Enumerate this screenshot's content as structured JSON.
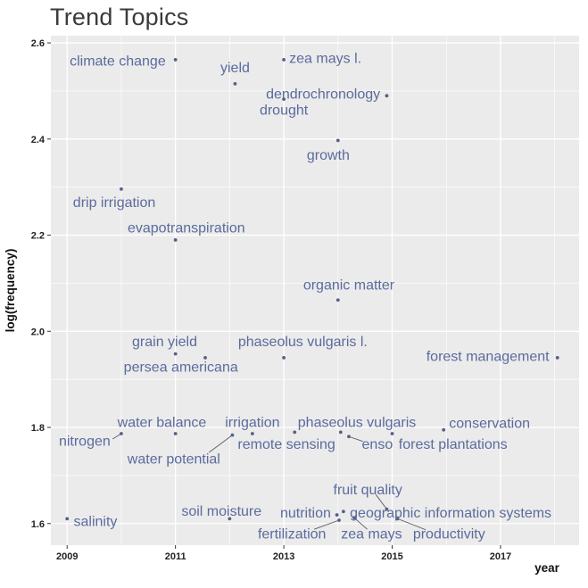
{
  "chart_data": {
    "type": "scatter",
    "title": "Trend Topics",
    "xlabel": "year",
    "ylabel": "log(frequency)",
    "x_domain": [
      2008.7,
      2018.45
    ],
    "y_domain": [
      1.555,
      2.615
    ],
    "x_ticks": {
      "values": [
        2009,
        2011,
        2013,
        2015,
        2017
      ],
      "labels": [
        "2009",
        "2011",
        "2013",
        "2015",
        "2017"
      ]
    },
    "x_minor_ticks": [
      2010,
      2012,
      2014,
      2016,
      2018
    ],
    "y_ticks": {
      "values": [
        2.6,
        2.4,
        2.2,
        2.0,
        1.8,
        1.6
      ],
      "labels": [
        "2.6",
        "2.4",
        "2.2",
        "2.0",
        "1.8",
        "1.6"
      ]
    },
    "y_minor_ticks": [
      2.5,
      2.3,
      2.1,
      1.9,
      1.7
    ],
    "panel_bg": "#ebebeb",
    "grid_color": "#ffffff",
    "point_color": "#566084",
    "label_color": "#5b6b9e",
    "leader_color": "#5a5a5a",
    "grid": true,
    "legend": "none",
    "points": [
      {
        "label": "climate change",
        "x": 2011.0,
        "y": 2.565,
        "lx": 2010.82,
        "ly": 2.562,
        "anchor": "end"
      },
      {
        "label": "yield",
        "x": 2012.1,
        "y": 2.515,
        "lx": 2012.1,
        "ly": 2.548,
        "anchor": "middle"
      },
      {
        "label": "zea mays l.",
        "x": 2013.0,
        "y": 2.565,
        "lx": 2013.1,
        "ly": 2.568,
        "anchor": "start"
      },
      {
        "label": "dendrochronology",
        "x": 2014.9,
        "y": 2.49,
        "lx": 2014.78,
        "ly": 2.493,
        "anchor": "end"
      },
      {
        "label": "drought",
        "x": 2013.0,
        "y": 2.483,
        "lx": 2013.0,
        "ly": 2.46,
        "anchor": "middle"
      },
      {
        "label": "growth",
        "x": 2014.0,
        "y": 2.397,
        "lx": 2013.82,
        "ly": 2.366,
        "anchor": "middle"
      },
      {
        "label": "drip irrigation",
        "x": 2010.0,
        "y": 2.296,
        "lx": 2009.87,
        "ly": 2.268,
        "anchor": "middle"
      },
      {
        "label": "evapotranspiration",
        "x": 2011.0,
        "y": 2.19,
        "lx": 2011.2,
        "ly": 2.215,
        "anchor": "middle"
      },
      {
        "label": "organic matter",
        "x": 2014.0,
        "y": 2.065,
        "lx": 2014.2,
        "ly": 2.096,
        "anchor": "middle"
      },
      {
        "label": "grain yield",
        "x": 2011.0,
        "y": 1.953,
        "lx": 2010.8,
        "ly": 1.978,
        "anchor": "middle"
      },
      {
        "label": "persea americana",
        "x": 2011.55,
        "y": 1.945,
        "lx": 2011.1,
        "ly": 1.925,
        "anchor": "middle"
      },
      {
        "label": "phaseolus vulgaris l.",
        "x": 2013.0,
        "y": 1.945,
        "lx": 2013.35,
        "ly": 1.978,
        "anchor": "middle"
      },
      {
        "label": "forest management",
        "x": 2018.05,
        "y": 1.945,
        "lx": 2017.9,
        "ly": 1.948,
        "anchor": "end"
      },
      {
        "label": "nitrogen",
        "x": 2010.0,
        "y": 1.787,
        "lx": 2009.8,
        "ly": 1.771,
        "anchor": "end",
        "leader": [
          2009.84,
          1.776
        ]
      },
      {
        "label": "water balance",
        "x": 2011.0,
        "y": 1.787,
        "lx": 2010.75,
        "ly": 1.81,
        "anchor": "middle"
      },
      {
        "label": "water potential",
        "x": 2012.05,
        "y": 1.784,
        "lx": 2010.97,
        "ly": 1.734,
        "anchor": "middle",
        "leader": [
          2011.62,
          1.748
        ]
      },
      {
        "label": "irrigation",
        "x": 2012.42,
        "y": 1.787,
        "lx": 2012.42,
        "ly": 1.81,
        "anchor": "middle"
      },
      {
        "label": "remote sensing",
        "x": 2013.2,
        "y": 1.79,
        "lx": 2013.05,
        "ly": 1.765,
        "anchor": "middle"
      },
      {
        "label": "phaseolus vulgaris",
        "x": 2014.05,
        "y": 1.79,
        "lx": 2014.35,
        "ly": 1.81,
        "anchor": "middle"
      },
      {
        "label": "enso",
        "x": 2014.2,
        "y": 1.781,
        "lx": 2014.44,
        "ly": 1.765,
        "anchor": "start",
        "leader": [
          2014.46,
          1.771
        ]
      },
      {
        "label": "forest plantations",
        "x": 2015.0,
        "y": 1.787,
        "lx": 2015.12,
        "ly": 1.765,
        "anchor": "start"
      },
      {
        "label": "conservation",
        "x": 2015.95,
        "y": 1.795,
        "lx": 2016.05,
        "ly": 1.808,
        "anchor": "start"
      },
      {
        "label": "fruit quality",
        "x": 2014.9,
        "y": 1.63,
        "lx": 2014.55,
        "ly": 1.67,
        "anchor": "middle",
        "leader": [
          2014.7,
          1.66
        ]
      },
      {
        "label": "salinity",
        "x": 2009.0,
        "y": 1.61,
        "lx": 2009.12,
        "ly": 1.604,
        "anchor": "start"
      },
      {
        "label": "soil moisture",
        "x": 2012.0,
        "y": 1.61,
        "lx": 2011.85,
        "ly": 1.626,
        "anchor": "middle"
      },
      {
        "label": "nutrition",
        "x": 2013.98,
        "y": 1.618,
        "lx": 2013.87,
        "ly": 1.622,
        "anchor": "end"
      },
      {
        "label": "geographic information systems",
        "x": 2014.1,
        "y": 1.625,
        "lx": 2014.22,
        "ly": 1.622,
        "anchor": "start"
      },
      {
        "label": "fertilization",
        "x": 2014.02,
        "y": 1.607,
        "lx": 2013.15,
        "ly": 1.578,
        "anchor": "middle",
        "leader": [
          2013.56,
          1.588
        ]
      },
      {
        "label": "zea mays",
        "x": 2014.3,
        "y": 1.612,
        "lx": 2014.62,
        "ly": 1.578,
        "anchor": "middle",
        "leader": [
          2014.54,
          1.588
        ]
      },
      {
        "label": "productivity",
        "x": 2015.1,
        "y": 1.61,
        "lx": 2016.05,
        "ly": 1.578,
        "anchor": "middle",
        "leader": [
          2015.62,
          1.587
        ]
      }
    ]
  }
}
